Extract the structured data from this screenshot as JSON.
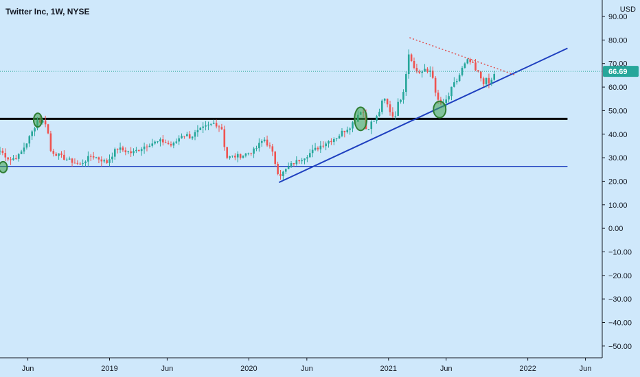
{
  "chart_data": {
    "type": "candlestick",
    "title": "Twitter Inc, 1W, NYSE",
    "currency": "USD",
    "current_price": 66.69,
    "current_price_label": "66.69",
    "y_range": [
      -55,
      97
    ],
    "y_ticks": [
      90,
      80,
      70,
      60,
      50,
      40,
      30,
      20,
      10,
      0,
      -10,
      -20,
      -30,
      -40,
      -50
    ],
    "y_tick_labels": [
      "90.00",
      "80.00",
      "70.00",
      "60.00",
      "50.00",
      "40.00",
      "30.00",
      "20.00",
      "10.00",
      "0.00",
      "−10.00",
      "−20.00",
      "−30.00",
      "−40.00",
      "−50.00"
    ],
    "x_range": [
      "2018-03-20",
      "2022-07-15"
    ],
    "x_ticks": [
      {
        "label": "Jun",
        "date": "2018-06-01"
      },
      {
        "label": "2019",
        "date": "2019-01-01"
      },
      {
        "label": "Jun",
        "date": "2019-06-01"
      },
      {
        "label": "2020",
        "date": "2020-01-01"
      },
      {
        "label": "Jun",
        "date": "2020-06-01"
      },
      {
        "label": "2021",
        "date": "2021-01-01"
      },
      {
        "label": "Jun",
        "date": "2021-06-01"
      },
      {
        "label": "2022",
        "date": "2022-01-01"
      },
      {
        "label": "Jun",
        "date": "2022-06-01"
      }
    ],
    "price_anchors": [
      [
        "2018-03-20",
        33
      ],
      [
        "2018-04-15",
        29
      ],
      [
        "2018-05-10",
        31
      ],
      [
        "2018-06-10",
        40
      ],
      [
        "2018-06-25",
        46
      ],
      [
        "2018-07-20",
        45
      ],
      [
        "2018-07-30",
        33
      ],
      [
        "2018-09-01",
        30
      ],
      [
        "2018-10-15",
        27
      ],
      [
        "2018-11-15",
        31
      ],
      [
        "2018-12-25",
        28
      ],
      [
        "2019-01-20",
        34
      ],
      [
        "2019-03-01",
        32
      ],
      [
        "2019-04-15",
        36
      ],
      [
        "2019-05-20",
        37
      ],
      [
        "2019-06-15",
        35
      ],
      [
        "2019-07-10",
        40
      ],
      [
        "2019-08-01",
        39
      ],
      [
        "2019-09-01",
        42
      ],
      [
        "2019-10-05",
        45
      ],
      [
        "2019-10-25",
        42
      ],
      [
        "2019-11-01",
        30
      ],
      [
        "2019-12-15",
        31
      ],
      [
        "2020-01-15",
        33
      ],
      [
        "2020-02-10",
        38
      ],
      [
        "2020-03-01",
        33
      ],
      [
        "2020-03-20",
        22
      ],
      [
        "2020-04-20",
        27
      ],
      [
        "2020-06-01",
        31
      ],
      [
        "2020-07-15",
        36
      ],
      [
        "2020-08-20",
        39
      ],
      [
        "2020-10-01",
        45
      ],
      [
        "2020-10-25",
        52
      ],
      [
        "2020-11-01",
        42
      ],
      [
        "2020-12-01",
        47
      ],
      [
        "2020-12-20",
        55
      ],
      [
        "2021-01-15",
        47
      ],
      [
        "2021-02-10",
        60
      ],
      [
        "2021-02-25",
        77
      ],
      [
        "2021-03-10",
        67
      ],
      [
        "2021-04-10",
        66
      ],
      [
        "2021-04-25",
        68
      ],
      [
        "2021-05-05",
        55
      ],
      [
        "2021-05-25",
        52
      ],
      [
        "2021-06-20",
        60
      ],
      [
        "2021-07-15",
        68
      ],
      [
        "2021-08-01",
        71
      ],
      [
        "2021-08-15",
        67
      ],
      [
        "2021-09-05",
        63
      ],
      [
        "2021-09-25",
        61
      ],
      [
        "2021-10-05",
        66
      ]
    ],
    "lines": [
      {
        "name": "resistance-black",
        "color": "#000000",
        "width": 3,
        "style": "solid",
        "points": [
          [
            "2018-03-20",
            46.5
          ],
          [
            "2022-04-15",
            46.5
          ]
        ]
      },
      {
        "name": "support-blue",
        "color": "#1e3fbf",
        "width": 1.5,
        "style": "solid",
        "points": [
          [
            "2018-03-20",
            26.3
          ],
          [
            "2022-04-15",
            26.3
          ]
        ]
      },
      {
        "name": "uptrend-blue",
        "color": "#1e3fbf",
        "width": 2,
        "style": "solid",
        "points": [
          [
            "2020-03-20",
            19.5
          ],
          [
            "2022-04-15",
            76.5
          ]
        ]
      },
      {
        "name": "downtrend-red-dotted",
        "color": "#e05050",
        "width": 1.5,
        "style": "dotted",
        "points": [
          [
            "2021-02-25",
            81
          ],
          [
            "2021-12-01",
            65
          ]
        ]
      }
    ],
    "markers": [
      {
        "date": "2018-03-28",
        "value": 26,
        "rx": 6,
        "ry": 8
      },
      {
        "date": "2018-06-27",
        "value": 46,
        "rx": 6,
        "ry": 10
      },
      {
        "date": "2020-10-20",
        "value": 46.5,
        "rx": 9,
        "ry": 17
      },
      {
        "date": "2021-05-15",
        "value": 50.5,
        "rx": 9,
        "ry": 12
      }
    ],
    "colors": {
      "background": "#cfe8fb",
      "up": "#26a69a",
      "down": "#ef5350",
      "price_line": "#26a69a",
      "price_tag": "#26a69a",
      "marker_fill": "#3fa34d",
      "marker_stroke": "#2e7d32",
      "axis": "#131722"
    }
  }
}
